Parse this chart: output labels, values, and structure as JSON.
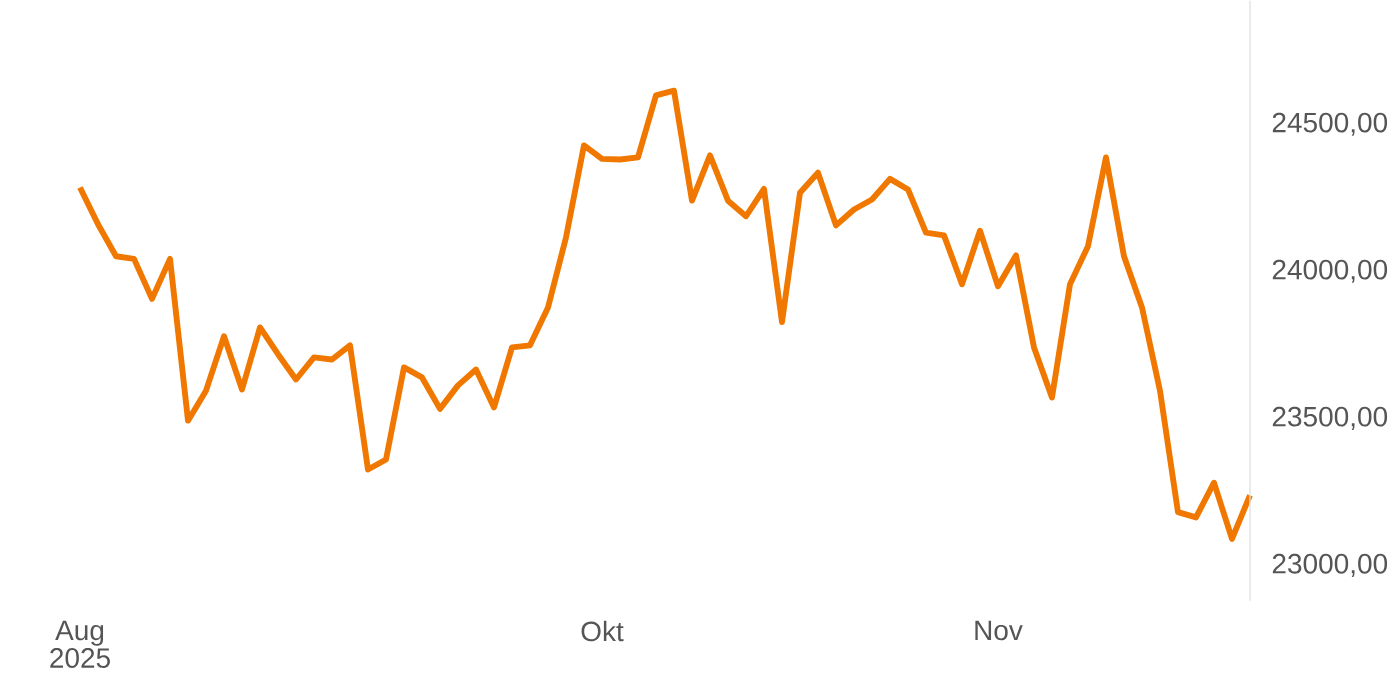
{
  "chart_data": {
    "type": "line",
    "categories": [
      "Aug",
      null,
      null,
      null,
      null,
      null,
      null,
      null,
      null,
      null,
      null,
      null,
      null,
      null,
      null,
      null,
      null,
      null,
      null,
      null,
      null,
      null,
      null,
      null,
      null,
      null,
      null,
      null,
      null,
      "Okt",
      null,
      null,
      null,
      null,
      null,
      null,
      null,
      null,
      null,
      null,
      null,
      null,
      null,
      null,
      null,
      null,
      null,
      null,
      null,
      null,
      null,
      "Nov",
      null,
      null,
      null,
      null,
      null,
      null,
      null,
      null,
      null,
      null,
      null,
      null,
      null,
      null
    ],
    "values": [
      24285,
      24160,
      24051,
      24042,
      23906,
      24042,
      23492,
      23594,
      23779,
      23598,
      23809,
      23718,
      23632,
      23707,
      23700,
      23748,
      23326,
      23360,
      23673,
      23639,
      23532,
      23612,
      23666,
      23537,
      23741,
      23748,
      23877,
      24115,
      24428,
      24382,
      24380,
      24387,
      24598,
      24614,
      24240,
      24394,
      24240,
      24187,
      24280,
      23827,
      24267,
      24335,
      24156,
      24210,
      24244,
      24314,
      24278,
      24131,
      24122,
      23956,
      24138,
      23949,
      24054,
      23741,
      23571,
      23956,
      24085,
      24387,
      24051,
      23877,
      23594,
      23181,
      23163,
      23281,
      23090,
      23238
    ],
    "color": "#f07800",
    "ylim": [
      22880,
      24920
    ],
    "yticks": [
      {
        "value": 23000,
        "label": "23000,00"
      },
      {
        "value": 23500,
        "label": "23500,00"
      },
      {
        "value": 24000,
        "label": "24000,00"
      },
      {
        "value": 24500,
        "label": "24500,00"
      }
    ],
    "annotations": [
      "2025"
    ]
  }
}
